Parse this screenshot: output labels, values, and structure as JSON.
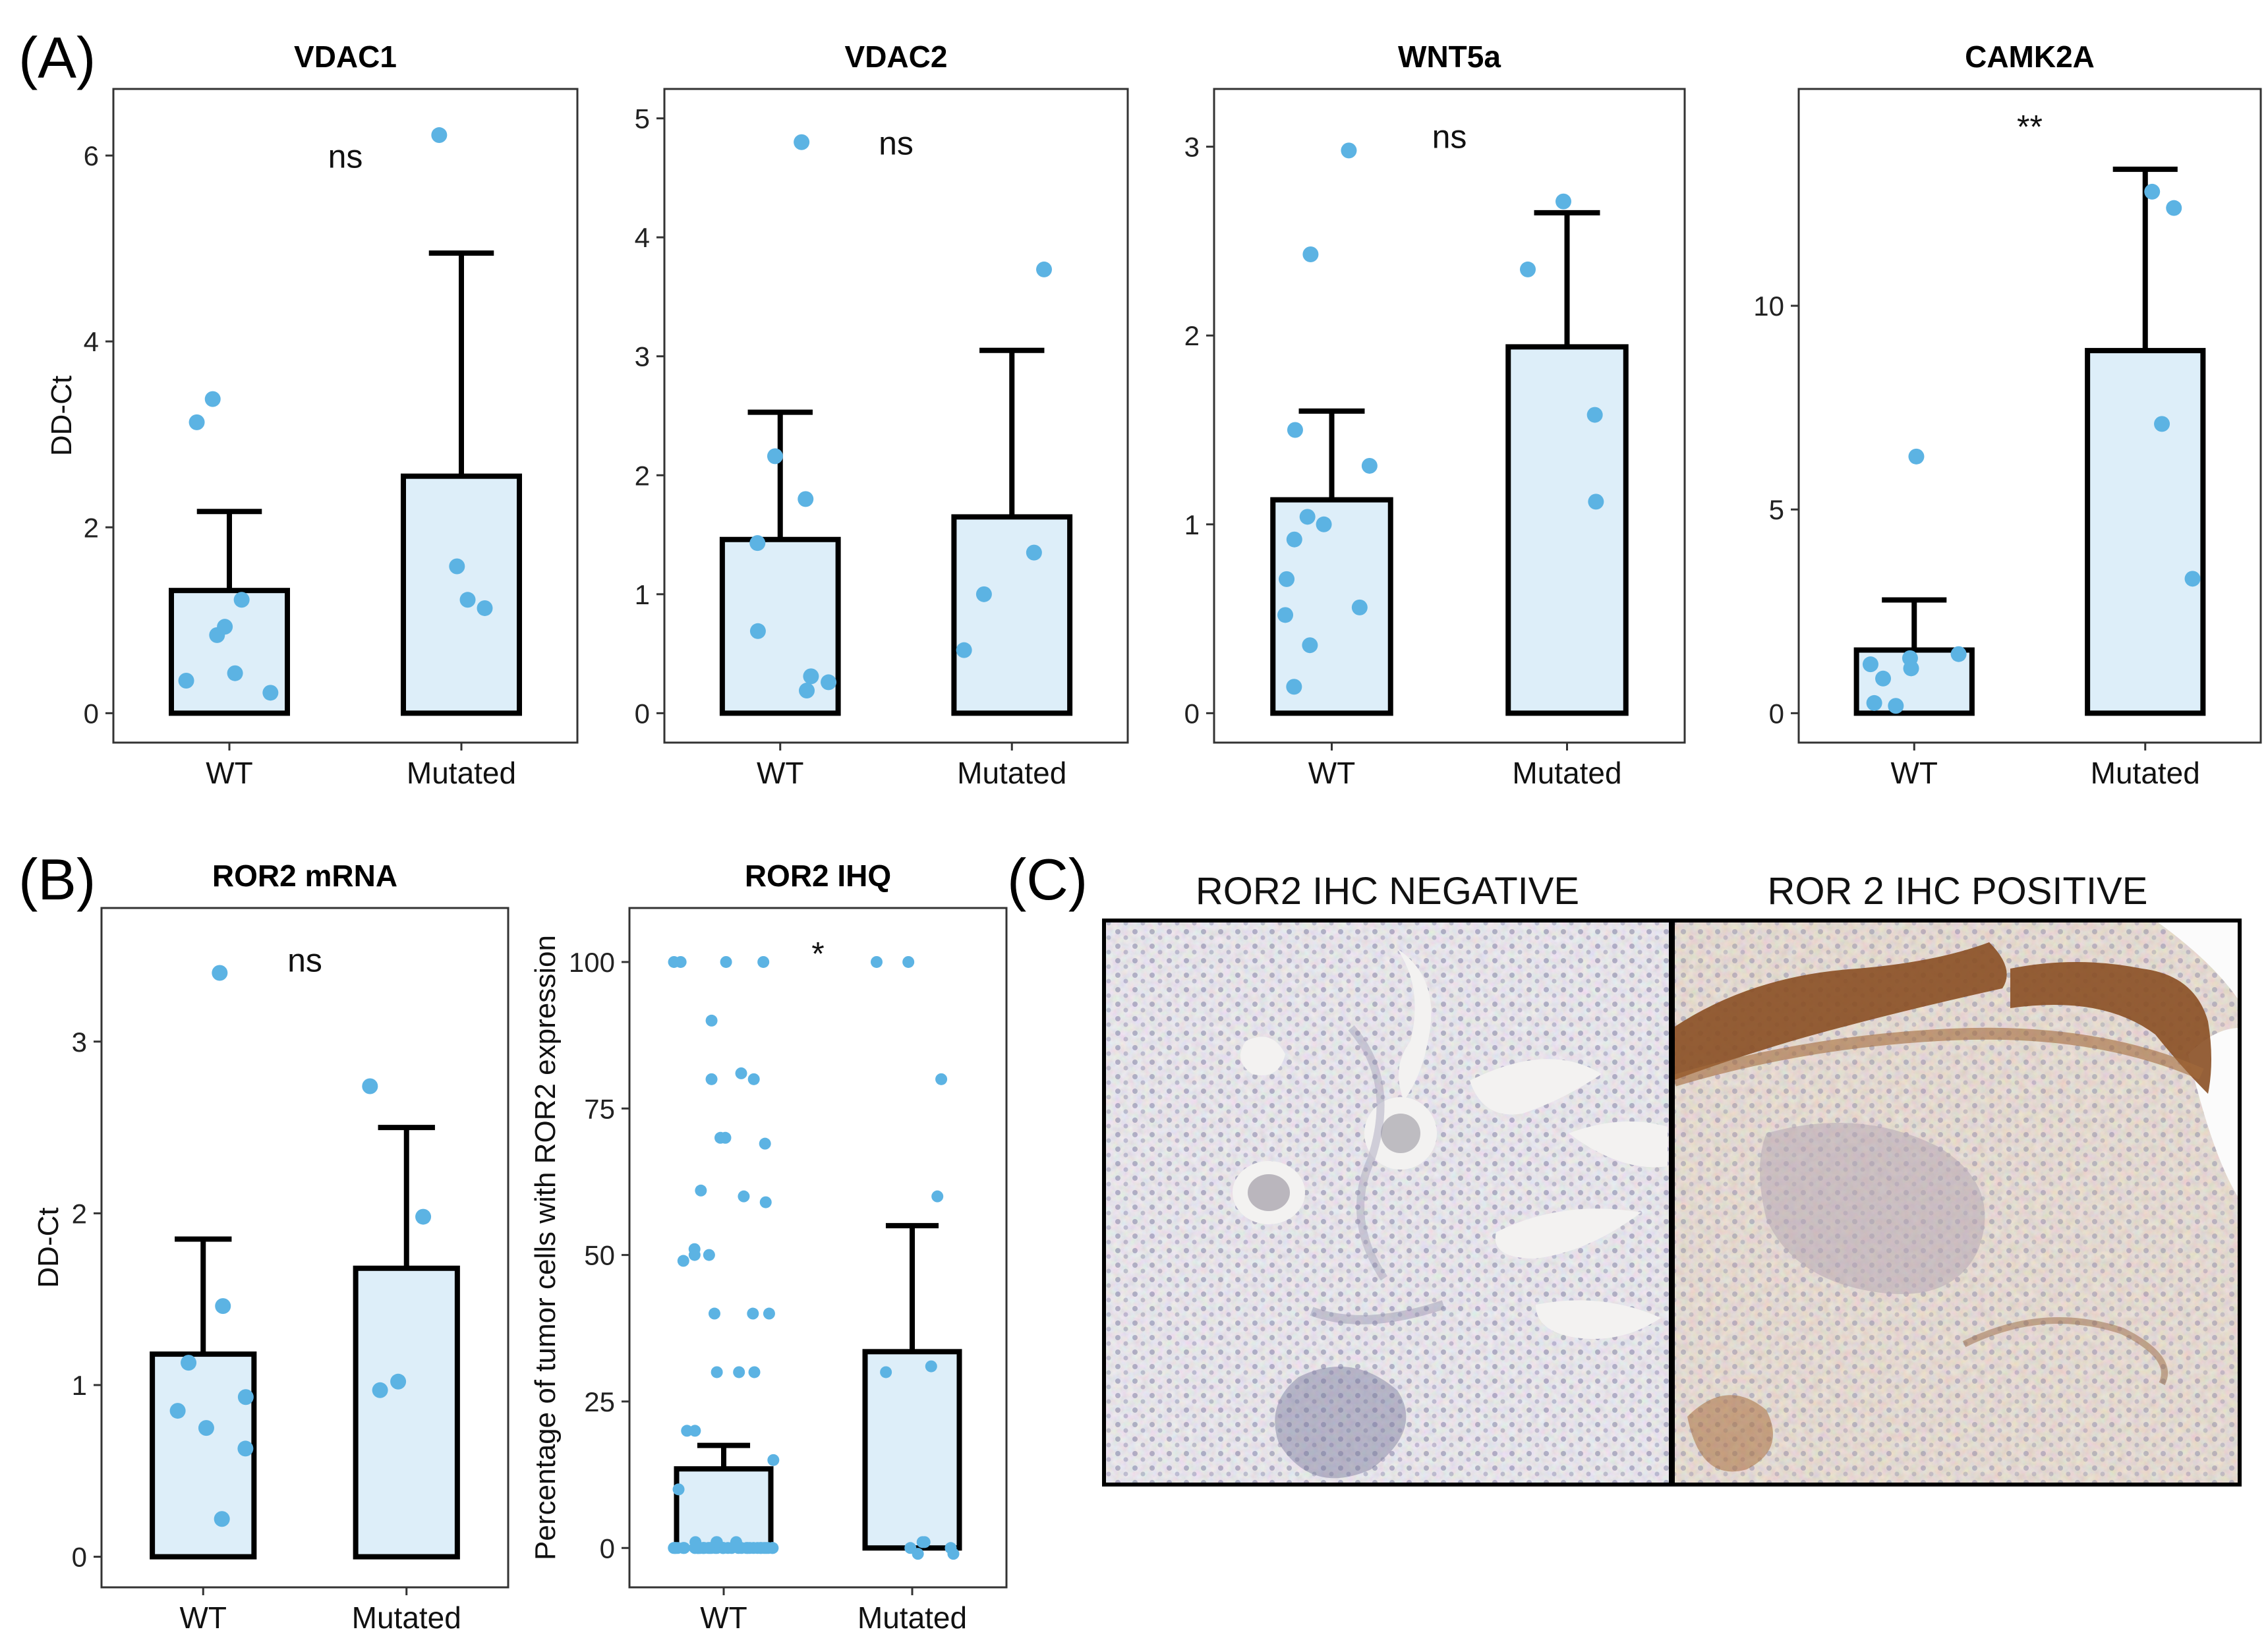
{
  "colors": {
    "bar_fill": "#ddeef9",
    "point": "#5cb3e3",
    "outline": "#000000",
    "tissue_neg": "#cdbfb2",
    "tissue_pos": "#c9ad90",
    "stain_brown": "#8a4f24"
  },
  "panel_labels": {
    "a": "(A)",
    "b": "(B)",
    "c": "(C)"
  },
  "images": {
    "neg_title": "ROR2 IHC NEGATIVE",
    "pos_title": "ROR 2 IHC POSITIVE"
  },
  "chart_data": [
    {
      "type": "bar",
      "title": "VDAC1",
      "ylabel": "DD-Ct",
      "xlabel": "",
      "categories": [
        "WT",
        "Mutated"
      ],
      "values": [
        1.32,
        2.55
      ],
      "error_upper": [
        2.17,
        4.95
      ],
      "ylim": [
        0,
        6.4
      ],
      "yticks": [
        "0",
        "2",
        "4",
        "6"
      ],
      "ytick_values": [
        0,
        2,
        4,
        6
      ],
      "significance": "ns",
      "points": [
        [
          0.22,
          0.35,
          0.43,
          0.84,
          0.93,
          1.22,
          3.13,
          3.38
        ],
        [
          1.13,
          1.22,
          1.58,
          6.22
        ]
      ],
      "grid": false
    },
    {
      "type": "bar",
      "title": "VDAC2",
      "ylabel": "",
      "xlabel": "",
      "categories": [
        "WT",
        "Mutated"
      ],
      "values": [
        1.46,
        1.65
      ],
      "error_upper": [
        2.53,
        3.05
      ],
      "ylim": [
        0,
        5
      ],
      "yticks": [
        "0",
        "1",
        "2",
        "3",
        "4",
        "5"
      ],
      "ytick_values": [
        0,
        1,
        2,
        3,
        4,
        5
      ],
      "significance": "ns",
      "points": [
        [
          0.19,
          0.26,
          0.31,
          0.69,
          1.43,
          1.8,
          2.16,
          4.8
        ],
        [
          0.53,
          1.0,
          1.35,
          3.73
        ]
      ],
      "grid": false
    },
    {
      "type": "bar",
      "title": "WNT5a",
      "ylabel": "",
      "xlabel": "",
      "categories": [
        "WT",
        "Mutated"
      ],
      "values": [
        1.13,
        1.94
      ],
      "error_upper": [
        1.6,
        2.65
      ],
      "ylim": [
        0,
        3.15
      ],
      "yticks": [
        "0",
        "1",
        "2",
        "3"
      ],
      "ytick_values": [
        0,
        1,
        2,
        3
      ],
      "significance": "ns",
      "points": [
        [
          0.14,
          0.36,
          0.52,
          0.56,
          0.71,
          0.92,
          1.0,
          1.04,
          1.31,
          1.5,
          2.43,
          2.98
        ],
        [
          1.12,
          1.58,
          2.35,
          2.71
        ]
      ],
      "grid": false
    },
    {
      "type": "bar",
      "title": "CAMK2A",
      "ylabel": "",
      "xlabel": "",
      "categories": [
        "WT",
        "Mutated"
      ],
      "values": [
        1.55,
        8.9
      ],
      "error_upper": [
        2.78,
        13.35
      ],
      "ylim": [
        0,
        14.6
      ],
      "yticks": [
        "0",
        "5",
        "10"
      ],
      "ytick_values": [
        0,
        5,
        10
      ],
      "significance": "**",
      "points": [
        [
          0.18,
          0.25,
          0.85,
          1.1,
          1.2,
          1.35,
          1.45,
          6.3
        ],
        [
          3.3,
          7.1,
          12.4,
          12.8
        ]
      ],
      "grid": false
    },
    {
      "type": "bar",
      "title": "ROR2 mRNA",
      "ylabel": "DD-Ct",
      "xlabel": "",
      "categories": [
        "WT",
        "Mutated"
      ],
      "values": [
        1.18,
        1.68
      ],
      "error_upper": [
        1.85,
        2.5
      ],
      "ylim": [
        0,
        3.6
      ],
      "yticks": [
        "0",
        "1",
        "2",
        "3"
      ],
      "ytick_values": [
        0,
        1,
        2,
        3
      ],
      "significance": "ns",
      "points": [
        [
          0.22,
          0.63,
          0.75,
          0.85,
          0.93,
          1.13,
          1.46,
          3.4
        ],
        [
          0.97,
          1.02,
          1.98,
          2.74
        ]
      ],
      "grid": false
    },
    {
      "type": "bar",
      "title": "ROR2 IHQ",
      "ylabel": "Percentage of tumor cells with ROR2 expression",
      "xlabel": "",
      "categories": [
        "WT",
        "Mutated"
      ],
      "values": [
        13.5,
        33.5
      ],
      "error_upper": [
        17.5,
        55
      ],
      "ylim": [
        -1.5,
        104
      ],
      "yticks": [
        "0",
        "25",
        "50",
        "75",
        "100"
      ],
      "ytick_values": [
        0,
        25,
        50,
        75,
        100
      ],
      "significance": "*",
      "points": [
        [
          0,
          0,
          0,
          0,
          0,
          0,
          0,
          0,
          0,
          0,
          0,
          0,
          0,
          0,
          0,
          0,
          0,
          0,
          0,
          0,
          0,
          0,
          0,
          0,
          0,
          0,
          0,
          0,
          0,
          0,
          0,
          0,
          0,
          0,
          0,
          0,
          0,
          0,
          0,
          0,
          1,
          1,
          1,
          1,
          10,
          15,
          20,
          20,
          30,
          30,
          30,
          40,
          40,
          40,
          49,
          50,
          50,
          51,
          59,
          60,
          61,
          69,
          70,
          70,
          80,
          80,
          81,
          90,
          100,
          100,
          100,
          100
        ],
        [
          -1,
          -1,
          0,
          0,
          1,
          1,
          30,
          31,
          60,
          80,
          100,
          100
        ]
      ],
      "grid": false
    }
  ]
}
